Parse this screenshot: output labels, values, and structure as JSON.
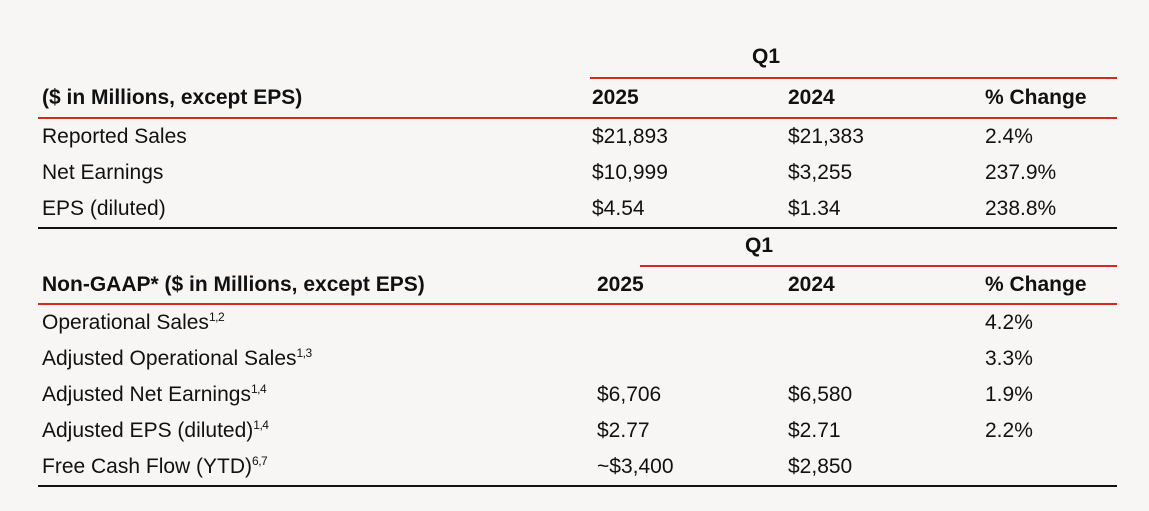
{
  "table1": {
    "group_label": "Q1",
    "headers": [
      "($ in Millions, except EPS)",
      "2025",
      "2024",
      "% Change"
    ],
    "rows": [
      {
        "label": "Reported Sales",
        "v2025": "$21,893",
        "v2024": "$21,383",
        "change": "2.4%"
      },
      {
        "label": "Net Earnings",
        "v2025": "$10,999",
        "v2024": "$3,255",
        "change": "237.9%"
      },
      {
        "label": "EPS (diluted)",
        "v2025": "$4.54",
        "v2024": "$1.34",
        "change": "238.8%"
      }
    ]
  },
  "table2": {
    "group_label": "Q1",
    "headers": [
      "Non-GAAP* ($ in Millions, except EPS)",
      "2025",
      "2024",
      "% Change"
    ],
    "rows": [
      {
        "label": "Operational Sales",
        "note": "1,2",
        "v2025": "",
        "v2024": "",
        "change": "4.2%"
      },
      {
        "label": "Adjusted Operational Sales",
        "note": "1,3",
        "v2025": "",
        "v2024": "",
        "change": "3.3%"
      },
      {
        "label": "Adjusted Net Earnings",
        "note": "1,4",
        "v2025": "$6,706",
        "v2024": "$6,580",
        "change": "1.9%"
      },
      {
        "label": "Adjusted EPS (diluted)",
        "note": "1,4",
        "v2025": "$2.77",
        "v2024": "$2.71",
        "change": "2.2%"
      },
      {
        "label": "Free Cash Flow (YTD)",
        "note": "6,7",
        "v2025": "~$3,400",
        "v2024": "$2,850",
        "change": ""
      }
    ]
  },
  "colors": {
    "accent_red": "#d62a1e",
    "rule_black": "#111111",
    "background": "#f8f6f5"
  }
}
